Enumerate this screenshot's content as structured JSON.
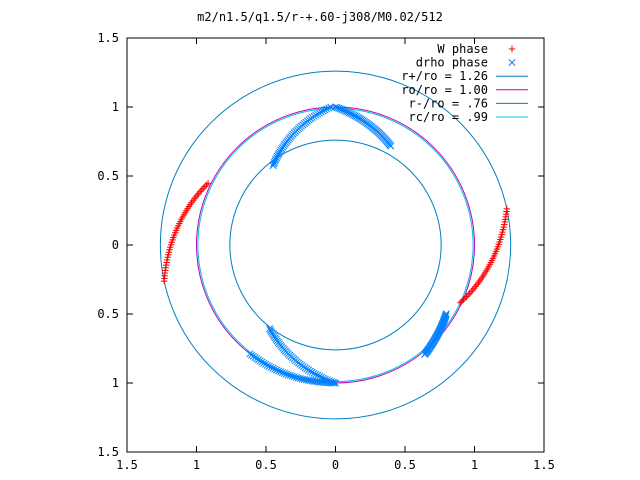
{
  "chart_data": {
    "type": "scatter",
    "title": "m2/n1.5/q1.5/r-+.60-j308/M0.02/512",
    "xlabel": "",
    "ylabel": "",
    "xlim": [
      -1.5,
      1.5
    ],
    "ylim": [
      -1.5,
      1.5
    ],
    "x_ticks": [
      -1.5,
      -1,
      -0.5,
      0,
      0.5,
      1,
      1.5
    ],
    "x_tick_labels": [
      "1.5",
      "1",
      "0.5",
      "0",
      "0.5",
      "1",
      "1.5"
    ],
    "y_ticks": [
      1.5,
      1,
      0.5,
      0,
      -0.5,
      -1,
      -1.5
    ],
    "y_tick_labels": [
      "1.5",
      "1",
      "0.5",
      "0",
      "0.5",
      "1",
      "1.5"
    ],
    "grid": false,
    "legend_position": "top-right",
    "point_series": [
      {
        "name": "W phase",
        "marker": "+",
        "color": "#ff0000",
        "arcs": [
          {
            "r": [
              1.26,
              1.02
            ],
            "theta_deg": [
              192,
              154
            ]
          },
          {
            "r": [
              1.26,
              0.99
            ],
            "theta_deg": [
              12,
              -25
            ]
          }
        ]
      },
      {
        "name": "drho phase",
        "marker": "x",
        "color": "#0080ff",
        "arcs": [
          {
            "r": [
              0.73,
              1.0
            ],
            "theta_deg": [
              128,
              92
            ]
          },
          {
            "r": [
              1.0,
              0.82
            ],
            "theta_deg": [
              90,
              61
            ]
          },
          {
            "r": [
              0.94,
              1.02
            ],
            "theta_deg": [
              -32,
              -51
            ]
          },
          {
            "r": [
              1.0,
              0.77
            ],
            "theta_deg": [
              -90,
              -128
            ]
          },
          {
            "r": [
              1.0,
              1.0
            ],
            "theta_deg": [
              -90,
              -128
            ]
          }
        ]
      }
    ],
    "circles": [
      {
        "name": "r+/ro = 1.26",
        "r": 1.26,
        "color": "#0080c0"
      },
      {
        "name": "ro/ro = 1.00",
        "r": 1.0,
        "color": "#c000c0"
      },
      {
        "name": "r-/ro = .76",
        "r": 0.76,
        "color": "#0080c0"
      },
      {
        "name": "rc/ro = .99",
        "r": 0.99,
        "color": "#00c0e0"
      }
    ]
  }
}
